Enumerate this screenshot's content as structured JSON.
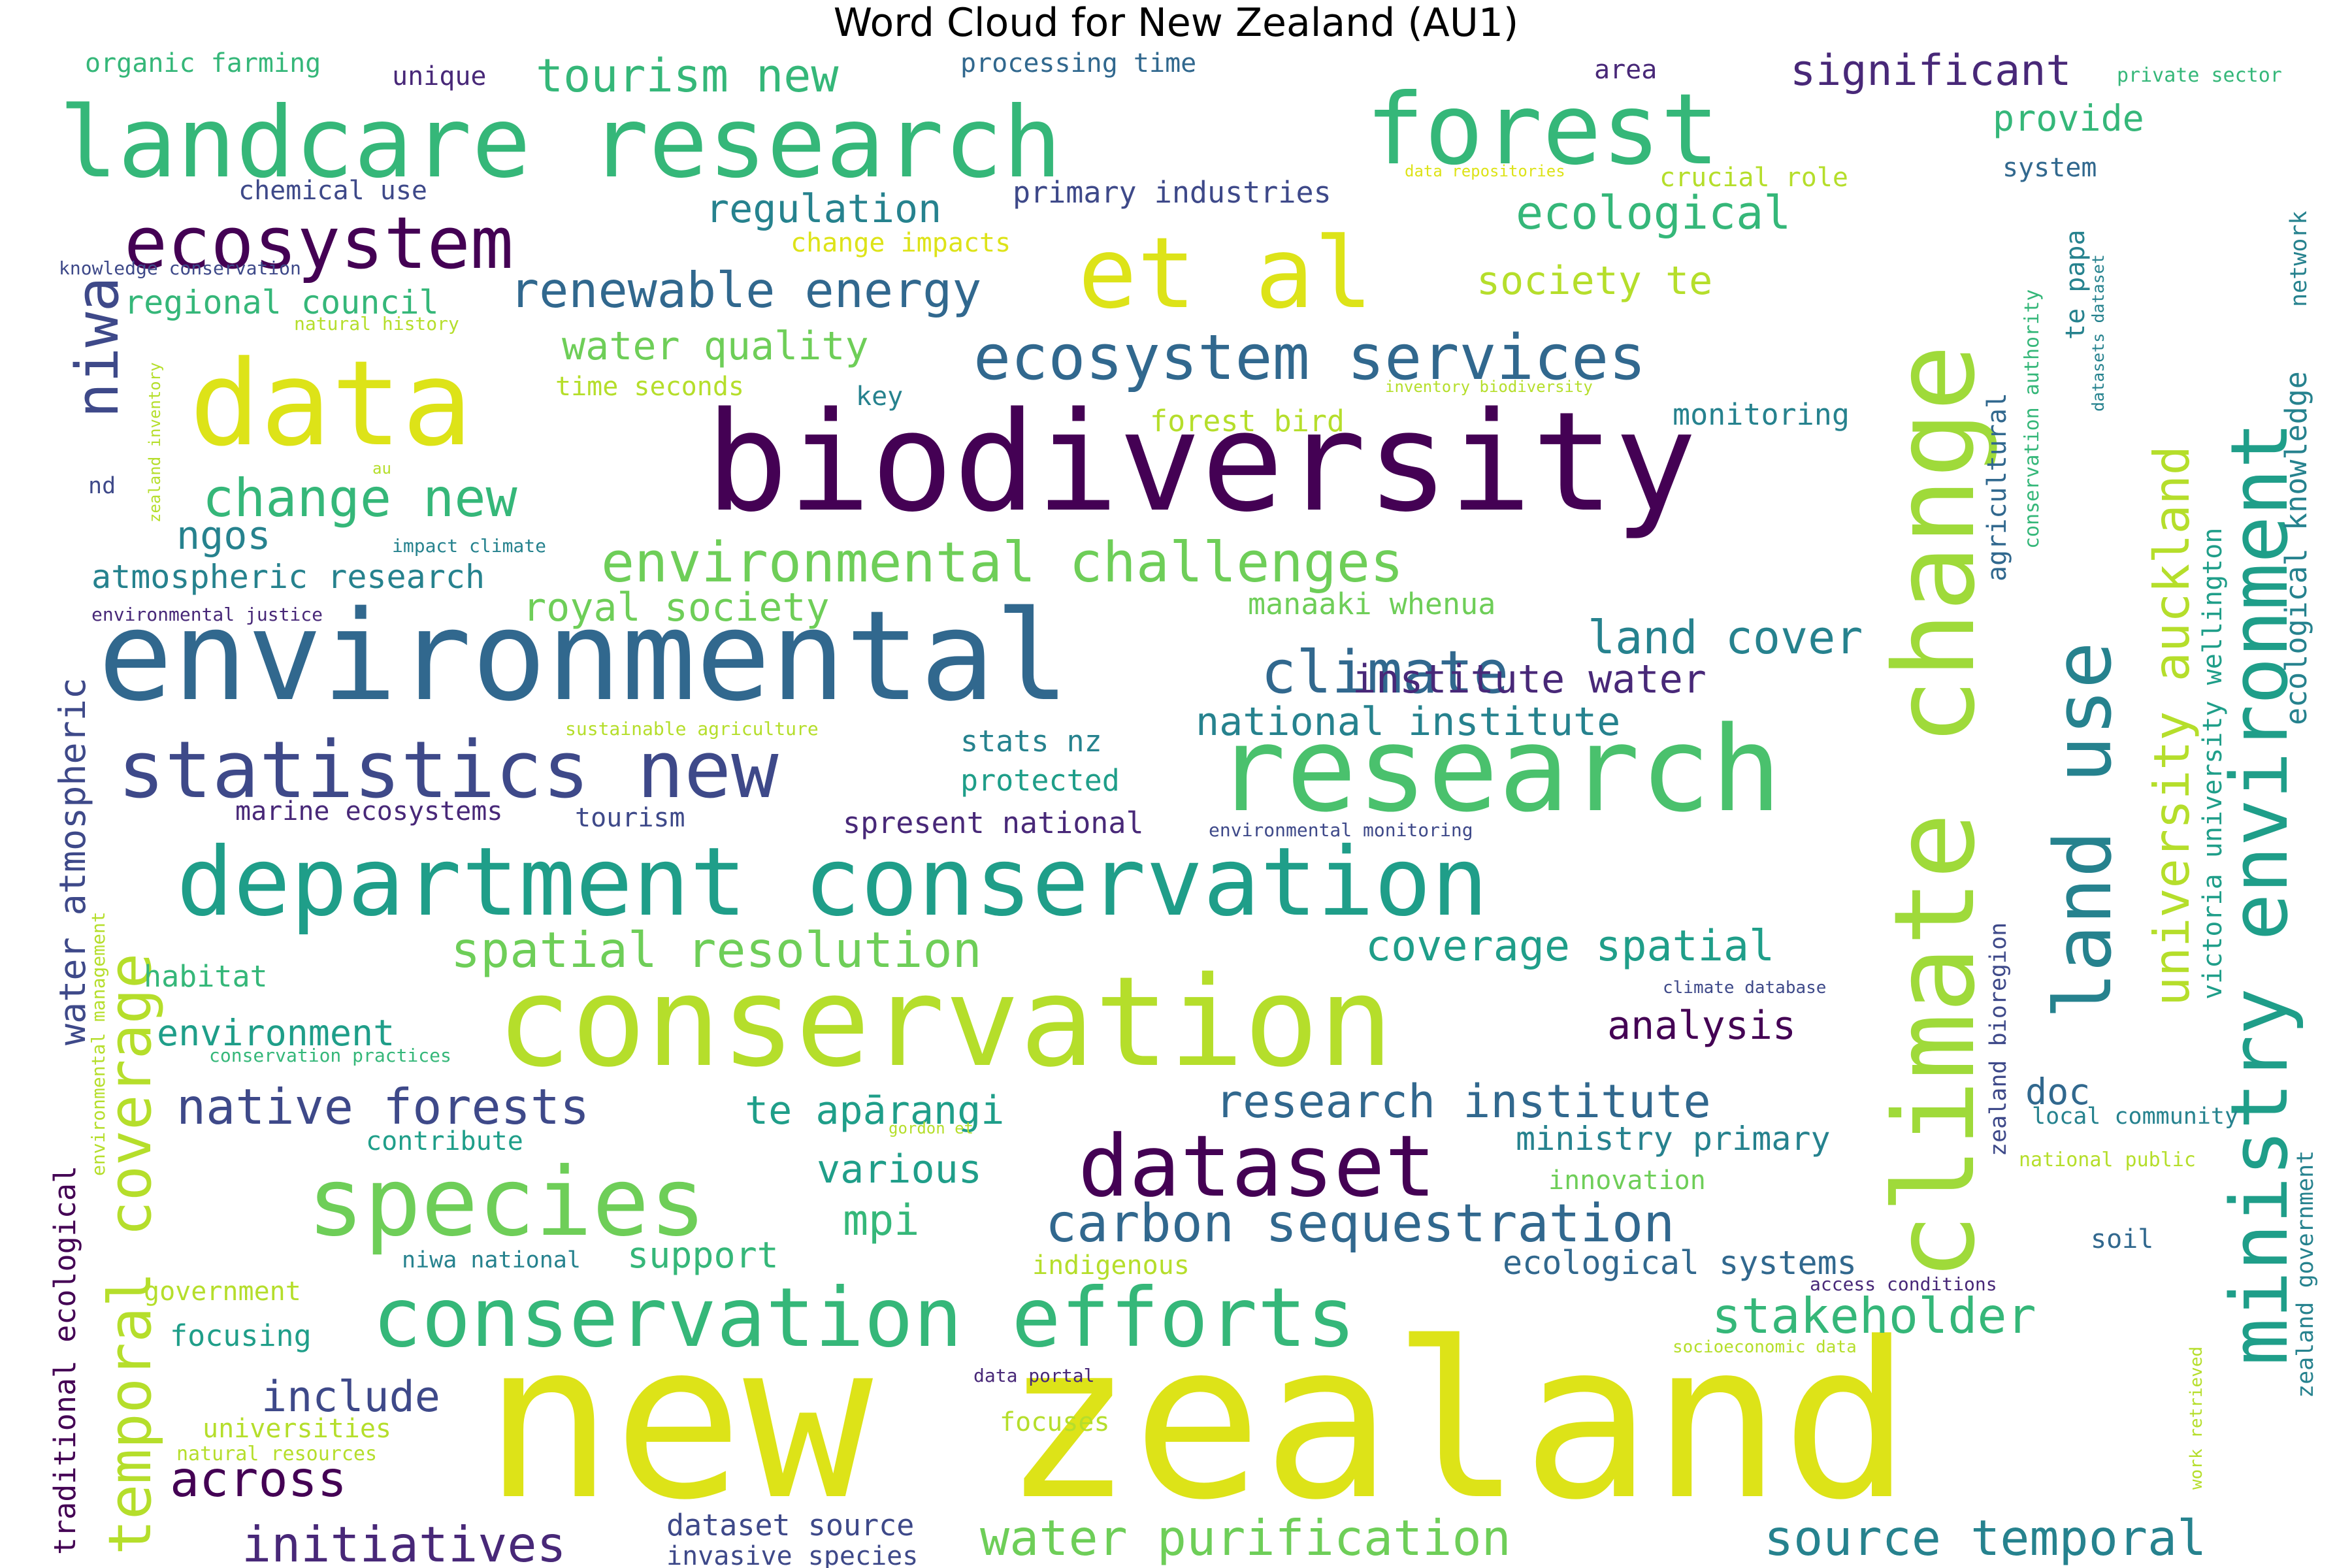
{
  "title": "Word Cloud for New Zealand (AU1)",
  "palette": [
    "#440154",
    "#482878",
    "#3e4989",
    "#31688e",
    "#26828e",
    "#1f9e89",
    "#35b779",
    "#6ece58",
    "#b5de2b",
    "#dde318"
  ],
  "words": [
    {
      "text": "new zealand",
      "weight": 100,
      "color": "#dde318",
      "vertical": false
    },
    {
      "text": "biodiversity",
      "weight": 55,
      "color": "#440154",
      "vertical": false
    },
    {
      "text": "environmental",
      "weight": 50,
      "color": "#31688e",
      "vertical": false
    },
    {
      "text": "conservation",
      "weight": 50,
      "color": "#b5de2b",
      "vertical": false
    },
    {
      "text": "climate change",
      "weight": 48,
      "color": "#9fda3a",
      "vertical": true
    },
    {
      "text": "research",
      "weight": 45,
      "color": "#4ac16d",
      "vertical": false
    },
    {
      "text": "data",
      "weight": 45,
      "color": "#dde318",
      "vertical": false
    },
    {
      "text": "landcare research",
      "weight": 40,
      "color": "#35b779",
      "vertical": false
    },
    {
      "text": "forest",
      "weight": 40,
      "color": "#35b779",
      "vertical": false
    },
    {
      "text": "department conservation",
      "weight": 38,
      "color": "#1f9e89",
      "vertical": false
    },
    {
      "text": "species",
      "weight": 38,
      "color": "#6ece58",
      "vertical": false
    },
    {
      "text": "et al",
      "weight": 38,
      "color": "#dde318",
      "vertical": false
    },
    {
      "text": "land use",
      "weight": 34,
      "color": "#26828e",
      "vertical": true
    },
    {
      "text": "ministry environment",
      "weight": 34,
      "color": "#1f9e89",
      "vertical": true
    },
    {
      "text": "conservation efforts",
      "weight": 30,
      "color": "#35b779",
      "vertical": false
    },
    {
      "text": "dataset",
      "weight": 30,
      "color": "#440154",
      "vertical": false
    },
    {
      "text": "statistics new",
      "weight": 28,
      "color": "#3e4989",
      "vertical": false
    },
    {
      "text": "ecosystem",
      "weight": 26,
      "color": "#440154",
      "vertical": false
    },
    {
      "text": "ecosystem services",
      "weight": 24,
      "color": "#31688e",
      "vertical": false
    },
    {
      "text": "climate",
      "weight": 22,
      "color": "#31688e",
      "vertical": false
    },
    {
      "text": "carbon sequestration",
      "weight": 20,
      "color": "#31688e",
      "vertical": false
    },
    {
      "text": "environmental challenges",
      "weight": 20,
      "color": "#6ece58",
      "vertical": false
    },
    {
      "text": "niwa",
      "weight": 20,
      "color": "#3e4989",
      "vertical": true
    },
    {
      "text": "temporal coverage",
      "weight": 20,
      "color": "#b5de2b",
      "vertical": true
    },
    {
      "text": "university auckland",
      "weight": 20,
      "color": "#b5de2b",
      "vertical": true
    },
    {
      "text": "change new",
      "weight": 18,
      "color": "#35b779",
      "vertical": false
    },
    {
      "text": "spatial resolution",
      "weight": 18,
      "color": "#6ece58",
      "vertical": false
    },
    {
      "text": "water purification",
      "weight": 18,
      "color": "#6ece58",
      "vertical": false
    },
    {
      "text": "source temporal",
      "weight": 18,
      "color": "#26828e",
      "vertical": false
    },
    {
      "text": "research institute",
      "weight": 18,
      "color": "#31688e",
      "vertical": false
    },
    {
      "text": "renewable energy",
      "weight": 17,
      "color": "#31688e",
      "vertical": false
    },
    {
      "text": "tourism new",
      "weight": 17,
      "color": "#35b779",
      "vertical": false
    },
    {
      "text": "native forests",
      "weight": 17,
      "color": "#3e4989",
      "vertical": false
    },
    {
      "text": "initiatives",
      "weight": 17,
      "color": "#482878",
      "vertical": false
    },
    {
      "text": "across",
      "weight": 17,
      "color": "#440154",
      "vertical": false
    },
    {
      "text": "land cover",
      "weight": 17,
      "color": "#26828e",
      "vertical": false
    },
    {
      "text": "stakeholder",
      "weight": 17,
      "color": "#35b779",
      "vertical": false
    },
    {
      "text": "significant",
      "weight": 16,
      "color": "#482878",
      "vertical": false
    },
    {
      "text": "national institute",
      "weight": 15,
      "color": "#26828e",
      "vertical": false
    },
    {
      "text": "institute water",
      "weight": 15,
      "color": "#482878",
      "vertical": false
    },
    {
      "text": "coverage spatial",
      "weight": 15,
      "color": "#1f9e89",
      "vertical": false
    },
    {
      "text": "te apārangi",
      "weight": 15,
      "color": "#1f9e89",
      "vertical": false
    },
    {
      "text": "royal society",
      "weight": 15,
      "color": "#6ece58",
      "vertical": false
    },
    {
      "text": "various",
      "weight": 15,
      "color": "#1f9e89",
      "vertical": false
    },
    {
      "text": "mpi",
      "weight": 15,
      "color": "#35b779",
      "vertical": false
    },
    {
      "text": "water atmospheric",
      "weight": 15,
      "color": "#3e4989",
      "vertical": true
    },
    {
      "text": "ecological",
      "weight": 15,
      "color": "#35b779",
      "vertical": false
    },
    {
      "text": "regulation",
      "weight": 15,
      "color": "#26828e",
      "vertical": false
    },
    {
      "text": "ngos",
      "weight": 15,
      "color": "#26828e",
      "vertical": false
    },
    {
      "text": "society te",
      "weight": 15,
      "color": "#b5de2b",
      "vertical": false
    },
    {
      "text": "include",
      "weight": 15,
      "color": "#3e4989",
      "vertical": false
    },
    {
      "text": "environment",
      "weight": 14,
      "color": "#1f9e89",
      "vertical": false
    },
    {
      "text": "analysis",
      "weight": 14,
      "color": "#440154",
      "vertical": false
    },
    {
      "text": "provide",
      "weight": 14,
      "color": "#35b779",
      "vertical": false
    },
    {
      "text": "support",
      "weight": 13,
      "color": "#35b779",
      "vertical": false
    },
    {
      "text": "doc",
      "weight": 13,
      "color": "#31688e",
      "vertical": false
    },
    {
      "text": "water quality",
      "weight": 13,
      "color": "#6ece58",
      "vertical": false
    },
    {
      "text": "atmospheric research",
      "weight": 12,
      "color": "#26828e",
      "vertical": false
    },
    {
      "text": "ministry primary",
      "weight": 12,
      "color": "#26828e",
      "vertical": false
    },
    {
      "text": "ecological systems",
      "weight": 12,
      "color": "#31688e",
      "vertical": false
    },
    {
      "text": "dataset source",
      "weight": 12,
      "color": "#3e4989",
      "vertical": false
    },
    {
      "text": "regional council",
      "weight": 12,
      "color": "#35b779",
      "vertical": false
    },
    {
      "text": "primary industries",
      "weight": 11,
      "color": "#3e4989",
      "vertical": false
    },
    {
      "text": "spresent national",
      "weight": 11,
      "color": "#482878",
      "vertical": false
    },
    {
      "text": "manaaki whenua",
      "weight": 11,
      "color": "#6ece58",
      "vertical": false
    },
    {
      "text": "traditional ecological",
      "weight": 11,
      "color": "#440154",
      "vertical": true
    },
    {
      "text": "victoria university wellington",
      "weight": 11,
      "color": "#1f9e89",
      "vertical": true
    },
    {
      "text": "ecological knowledge",
      "weight": 11,
      "color": "#26828e",
      "vertical": true
    },
    {
      "text": "stats nz",
      "weight": 11,
      "color": "#26828e",
      "vertical": false
    },
    {
      "text": "protected",
      "weight": 11,
      "color": "#1f9e89",
      "vertical": false
    },
    {
      "text": "focuses",
      "weight": 11,
      "color": "#b5de2b",
      "vertical": false
    },
    {
      "text": "habitat",
      "weight": 11,
      "color": "#35b779",
      "vertical": false
    },
    {
      "text": "monitoring",
      "weight": 11,
      "color": "#26828e",
      "vertical": false
    },
    {
      "text": "forest bird",
      "weight": 11,
      "color": "#b5de2b",
      "vertical": false
    },
    {
      "text": "focusing",
      "weight": 11,
      "color": "#1f9e89",
      "vertical": false
    },
    {
      "text": "invasive species",
      "weight": 10,
      "color": "#3e4989",
      "vertical": false
    },
    {
      "text": "innovation",
      "weight": 10,
      "color": "#6ece58",
      "vertical": false
    },
    {
      "text": "contribute",
      "weight": 10,
      "color": "#1f9e89",
      "vertical": false
    },
    {
      "text": "universities",
      "weight": 10,
      "color": "#b5de2b",
      "vertical": false
    },
    {
      "text": "indigenous",
      "weight": 10,
      "color": "#b5de2b",
      "vertical": false
    },
    {
      "text": "government",
      "weight": 10,
      "color": "#b5de2b",
      "vertical": false
    },
    {
      "text": "time seconds",
      "weight": 10,
      "color": "#b5de2b",
      "vertical": false
    },
    {
      "text": "te papa",
      "weight": 10,
      "color": "#26828e",
      "vertical": true
    },
    {
      "text": "zealand bioregion",
      "weight": 10,
      "color": "#3e4989",
      "vertical": true
    },
    {
      "text": "zealand government",
      "weight": 10,
      "color": "#26828e",
      "vertical": true
    },
    {
      "text": "agricultural",
      "weight": 10,
      "color": "#31688e",
      "vertical": true
    },
    {
      "text": "system",
      "weight": 10,
      "color": "#31688e",
      "vertical": false
    },
    {
      "text": "tourism",
      "weight": 9,
      "color": "#3e4989",
      "vertical": false
    },
    {
      "text": "key",
      "weight": 9,
      "color": "#26828e",
      "vertical": false
    },
    {
      "text": "soil",
      "weight": 9,
      "color": "#31688e",
      "vertical": false
    },
    {
      "text": "unique",
      "weight": 9,
      "color": "#482878",
      "vertical": false
    },
    {
      "text": "area",
      "weight": 9,
      "color": "#482878",
      "vertical": false
    },
    {
      "text": "marine ecosystems",
      "weight": 9,
      "color": "#482878",
      "vertical": false
    },
    {
      "text": "processing time",
      "weight": 9,
      "color": "#31688e",
      "vertical": false
    },
    {
      "text": "organic farming",
      "weight": 9,
      "color": "#35b779",
      "vertical": false
    },
    {
      "text": "chemical use",
      "weight": 9,
      "color": "#3e4989",
      "vertical": false
    },
    {
      "text": "change impacts",
      "weight": 9,
      "color": "#dde318",
      "vertical": false
    },
    {
      "text": "crucial role",
      "weight": 9,
      "color": "#b5de2b",
      "vertical": false
    },
    {
      "text": "nd",
      "weight": 9,
      "color": "#3e4989",
      "vertical": false
    },
    {
      "text": "niwa national",
      "weight": 8,
      "color": "#26828e",
      "vertical": false
    },
    {
      "text": "local community",
      "weight": 8,
      "color": "#26828e",
      "vertical": false
    },
    {
      "text": "private sector",
      "weight": 7,
      "color": "#35b779",
      "vertical": false
    },
    {
      "text": "national public",
      "weight": 7,
      "color": "#b5de2b",
      "vertical": false
    },
    {
      "text": "conservation authority",
      "weight": 7,
      "color": "#35b779",
      "vertical": true
    },
    {
      "text": "knowledge conservation",
      "weight": 6,
      "color": "#3e4989",
      "vertical": false
    },
    {
      "text": "natural history",
      "weight": 6,
      "color": "#b5de2b",
      "vertical": false
    },
    {
      "text": "natural resources",
      "weight": 7,
      "color": "#b5de2b",
      "vertical": false
    },
    {
      "text": "environmental justice",
      "weight": 6,
      "color": "#482878",
      "vertical": false
    },
    {
      "text": "impact climate",
      "weight": 6,
      "color": "#26828e",
      "vertical": false
    },
    {
      "text": "sustainable agriculture",
      "weight": 6,
      "color": "#b5de2b",
      "vertical": false
    },
    {
      "text": "environmental monitoring",
      "weight": 6,
      "color": "#3e4989",
      "vertical": false
    },
    {
      "text": "conservation practices",
      "weight": 6,
      "color": "#35b779",
      "vertical": false
    },
    {
      "text": "climate database",
      "weight": 6,
      "color": "#3e4989",
      "vertical": false
    },
    {
      "text": "access conditions",
      "weight": 6,
      "color": "#482878",
      "vertical": false
    },
    {
      "text": "socioeconomic data",
      "weight": 6,
      "color": "#b5de2b",
      "vertical": false
    },
    {
      "text": "data portal",
      "weight": 6,
      "color": "#482878",
      "vertical": false
    },
    {
      "text": "gordon et",
      "weight": 5,
      "color": "#b5de2b",
      "vertical": false
    },
    {
      "text": "data repositories",
      "weight": 5,
      "color": "#dde318",
      "vertical": false
    },
    {
      "text": "inventory biodiversity",
      "weight": 5,
      "color": "#b5de2b",
      "vertical": false
    },
    {
      "text": "datasets dataset",
      "weight": 5,
      "color": "#26828e",
      "vertical": true
    },
    {
      "text": "zealand inventory",
      "weight": 5,
      "color": "#b5de2b",
      "vertical": true
    },
    {
      "text": "environmental management",
      "weight": 5,
      "color": "#b5de2b",
      "vertical": true
    },
    {
      "text": "work retrieved",
      "weight": 5,
      "color": "#b5de2b",
      "vertical": true
    },
    {
      "text": "network",
      "weight": 7,
      "color": "#26828e",
      "vertical": true
    },
    {
      "text": "au",
      "weight": 5,
      "color": "#b5de2b",
      "vertical": false
    }
  ]
}
